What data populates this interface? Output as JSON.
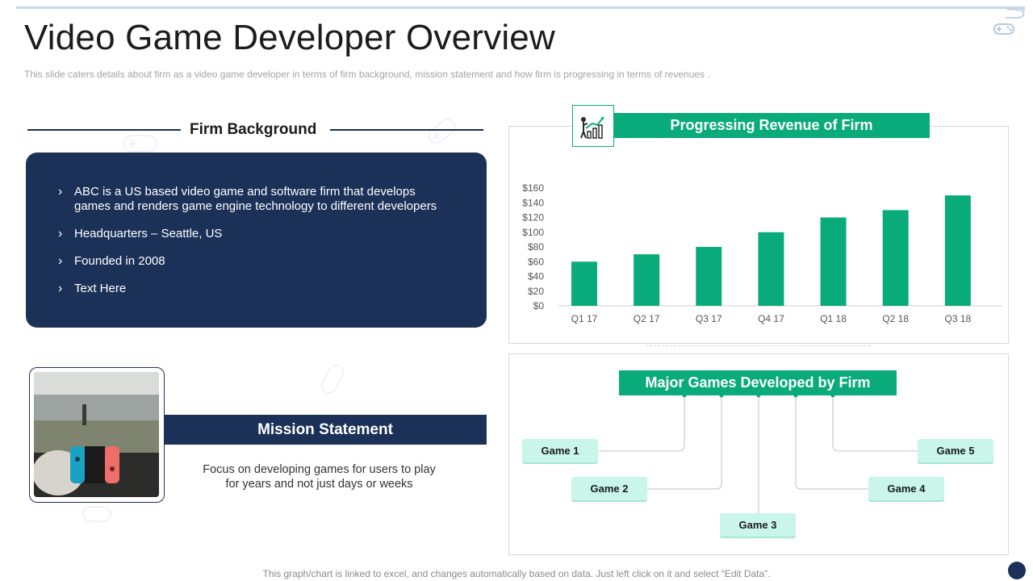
{
  "slide": {
    "title": "Video Game Developer Overview",
    "subtitle": "This slide caters details about firm as a video game developer in terms of firm background, mission statement and how firm is progressing in terms of revenues .",
    "footer": "This graph/chart is linked to excel,  and changes automatically based on data. Just left click on it and select “Edit Data”."
  },
  "firm_background": {
    "heading": "Firm Background",
    "bullets": [
      "ABC is a US based video game and software firm that develops games and renders game engine technology to different developers",
      "Headquarters – Seattle, US",
      "Founded in 2008",
      "Text Here"
    ]
  },
  "mission": {
    "heading": "Mission Statement",
    "text": "Focus on developing games for users to play for years and not just days or weeks"
  },
  "revenue": {
    "heading": "Progressing Revenue of Firm"
  },
  "games": {
    "heading": "Major Games Developed by Firm",
    "items": [
      "Game 1",
      "Game 2",
      "Game 3",
      "Game 4",
      "Game 5"
    ]
  },
  "colors": {
    "navy": "#1b3158",
    "green": "#0aab7a",
    "mint": "#c9f5ea"
  },
  "chart_data": {
    "type": "bar",
    "categories": [
      "Q1 17",
      "Q2 17",
      "Q3 17",
      "Q4 17",
      "Q1 18",
      "Q2 18",
      "Q3 18"
    ],
    "values": [
      60,
      70,
      80,
      100,
      120,
      130,
      150
    ],
    "yticks": [
      "$0",
      "$20",
      "$40",
      "$60",
      "$80",
      "$100",
      "$120",
      "$140",
      "$160"
    ],
    "ylim": [
      0,
      160
    ],
    "grid": false,
    "legend": "none",
    "color": "#0aab7a"
  }
}
